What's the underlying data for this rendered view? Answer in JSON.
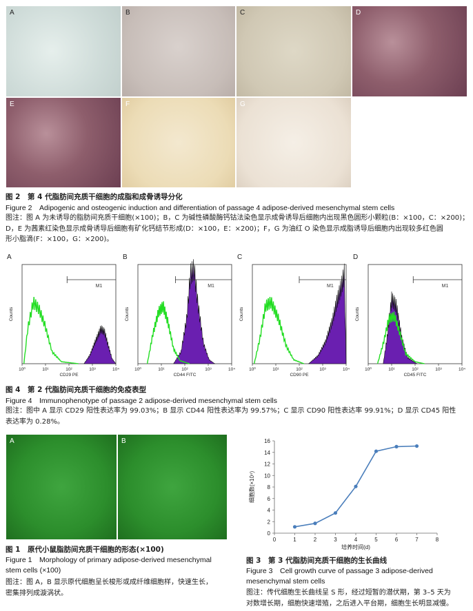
{
  "figure2": {
    "panels": [
      "A",
      "B",
      "C",
      "D",
      "E",
      "F",
      "G"
    ],
    "caption_cn": "图 2　第 4 代脂肪间充质干细胞的成脂和成骨诱导分化",
    "caption_en": "Figure 2　Adipogenic and osteogenic induction and differentiation of passage 4 adipose-derived mesenchymal stem cells",
    "note_lines": [
      "图注：图 A 为未诱导的脂肪间充质干细胞(×100)；B，C 为碱性磷酸酶钙钴法染色显示成骨诱导后细胞内出现黑色圆形小颗粒(B：×100，C：×200)；",
      "D，E 为茜素红染色显示成骨诱导后细胞有矿化钙结节形成(D：×100，E：×200)；F，G 为油红 O 染色显示成脂诱导后细胞内出现较多红色圆",
      "形小脂滴(F：×100，G：×200)。"
    ]
  },
  "figure4": {
    "panels": [
      {
        "letter": "A",
        "xlabel": "CD29 PE",
        "gate": "M1"
      },
      {
        "letter": "B",
        "xlabel": "CD44 FITC",
        "gate": "M1"
      },
      {
        "letter": "C",
        "xlabel": "CD90 PE",
        "gate": "M1"
      },
      {
        "letter": "D",
        "xlabel": "CD45 FITC",
        "gate": "M1"
      }
    ],
    "ylabel": "Counts",
    "xticks": [
      "10⁰",
      "10¹",
      "10²",
      "10³",
      "10⁴"
    ],
    "colors": {
      "control": "#22dd22",
      "stain": "#6a1fb0"
    },
    "caption_cn": "图 4　第 2 代脂肪间充质干细胞的免疫表型",
    "caption_en": "Figure 4　Immunophenotype of passage 2 adipose-derived mesenchymal stem cells",
    "note_lines": [
      "图注：图中 A 显示 CD29 阳性表达率为 99.03%；B 显示 CD44 阳性表达率为 99.57%；C 显示 CD90 阳性表达率 99.91%；D 显示 CD45 阳性",
      "表达率为 0.28%。"
    ]
  },
  "figure1": {
    "panels": [
      "A",
      "B"
    ],
    "caption_cn": "图 1　原代小鼠脂肪间充质干细胞的形态(×100)",
    "caption_en_lines": [
      "Figure 1　Morphology of primary adipose-derived mesenchymal",
      "stem cells (×100)"
    ],
    "note_lines": [
      "图注：图 A，B 显示原代细胞呈长梭形或成纤维细胞样，快速生长，",
      "密集排列成漩涡状。"
    ]
  },
  "figure3": {
    "caption_cn": "图 3　第 3 代脂肪间充质干细胞的生长曲线",
    "caption_en_lines": [
      "Figure 3　Cell growth curve of passage 3 adipose-derived",
      "mesenchymal stem cells"
    ],
    "note_lines": [
      "图注：传代细胞生长曲线呈 S 形，经过短暂的潜伏期，第 3–5 天为",
      "对数增长期，细胞快速增殖，之后进入平台期，细胞生长明显减慢。"
    ]
  },
  "chart_data": {
    "type": "line",
    "x": [
      1,
      2,
      3,
      4,
      5,
      6,
      7
    ],
    "series": [
      {
        "values": [
          1.1,
          1.7,
          3.5,
          8.1,
          14.2,
          15.0,
          15.1
        ]
      }
    ],
    "xlabel": "培养时间(d)",
    "ylabel": "细胞数(×10⁴)",
    "xlim": [
      0,
      8
    ],
    "ylim": [
      0,
      16
    ],
    "xticks": [
      0,
      1,
      2,
      3,
      4,
      5,
      6,
      7,
      8
    ],
    "yticks": [
      0,
      2,
      4,
      6,
      8,
      10,
      12,
      14,
      16
    ],
    "grid": false,
    "color": "#4a7ebb"
  }
}
